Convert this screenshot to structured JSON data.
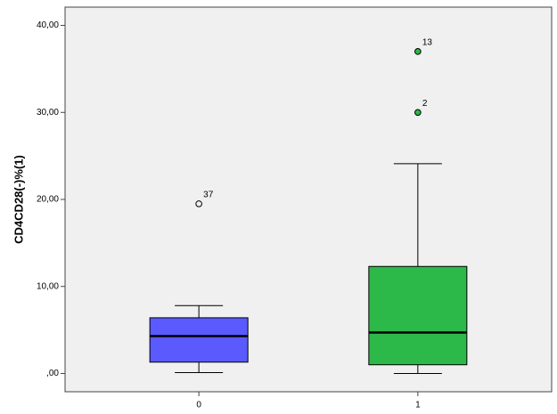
{
  "chart_data": {
    "type": "box",
    "y_label": "CD4CD28(-)%(1)",
    "categories": [
      "0",
      "1"
    ],
    "boxes": [
      {
        "min": 0.1,
        "q1": 1.3,
        "median": 4.3,
        "q3": 6.4,
        "max": 7.8,
        "color": "#5a5aff",
        "outliers": [
          {
            "value": 19.5,
            "label": "37",
            "filled": false
          }
        ]
      },
      {
        "min": 0.0,
        "q1": 1.0,
        "median": 4.7,
        "q3": 12.3,
        "max": 24.1,
        "color": "#2db84a",
        "outliers": [
          {
            "value": 37.0,
            "label": "13",
            "filled": true
          },
          {
            "value": 30.0,
            "label": "2",
            "filled": true
          }
        ]
      }
    ],
    "ylim": [
      -2.1,
      42.1
    ],
    "yticks": [
      {
        "value": 0,
        "label": ",00"
      },
      {
        "value": 10,
        "label": "10,00"
      },
      {
        "value": 20,
        "label": "20,00"
      },
      {
        "value": 30,
        "label": "30,00"
      },
      {
        "value": 40,
        "label": "40,00"
      }
    ]
  }
}
